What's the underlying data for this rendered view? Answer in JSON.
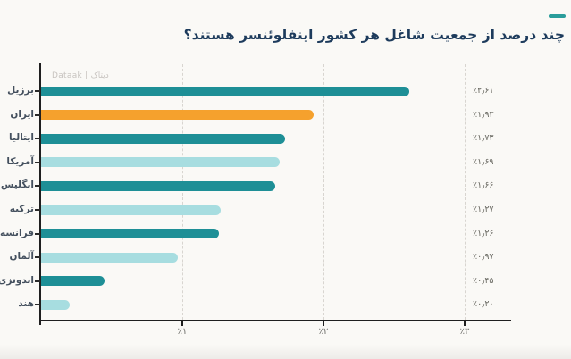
{
  "header": {
    "title": "چند درصد از جمعیت شاغل هر کشور اینفلوئنسر هستند؟"
  },
  "watermark": "Dataak | دیتاک",
  "colors": {
    "accent_dash": "#2a9d9b",
    "title": "#1d3b5c",
    "teal_dark": "#1e8f96",
    "teal_light": "#a7dde0",
    "orange": "#f5a12d",
    "axis": "#1f1f1f",
    "grid": "#d8d5d0",
    "watermark": "#c7c3bf",
    "background": "#faf9f6"
  },
  "chart_data": {
    "type": "bar",
    "orientation": "horizontal",
    "title": "چند درصد از جمعیت شاغل هر کشور اینفلوئنسر هستند؟",
    "categories": [
      "برزیل",
      "ایران",
      "ایتالیا",
      "آمریکا",
      "انگلیس",
      "ترکیه",
      "فرانسه",
      "آلمان",
      "اندونزی",
      "هند"
    ],
    "values": [
      2.61,
      1.93,
      1.73,
      1.69,
      1.66,
      1.27,
      1.26,
      0.97,
      0.45,
      0.2
    ],
    "value_labels": [
      "٪۲٫۶۱",
      "٪۱٫۹۳",
      "٪۱٫۷۳",
      "٪۱٫۶۹",
      "٪۱٫۶۶",
      "٪۱٫۲۷",
      "٪۱٫۲۶",
      "٪۰٫۹۷",
      "٪۰٫۴۵",
      "٪۰٫۲۰"
    ],
    "bar_colors": [
      "#1e8f96",
      "#f5a12d",
      "#1e8f96",
      "#a7dde0",
      "#1e8f96",
      "#a7dde0",
      "#1e8f96",
      "#a7dde0",
      "#1e8f96",
      "#a7dde0"
    ],
    "highlight_category": "ایران",
    "xlabel": "",
    "ylabel": "",
    "xlim": [
      0,
      3.32
    ],
    "x_ticks": [
      1,
      2,
      3
    ],
    "x_tick_labels": [
      "٪۱",
      "٪۲",
      "٪۳"
    ],
    "grid": "vertical-dashed",
    "legend": "none"
  }
}
